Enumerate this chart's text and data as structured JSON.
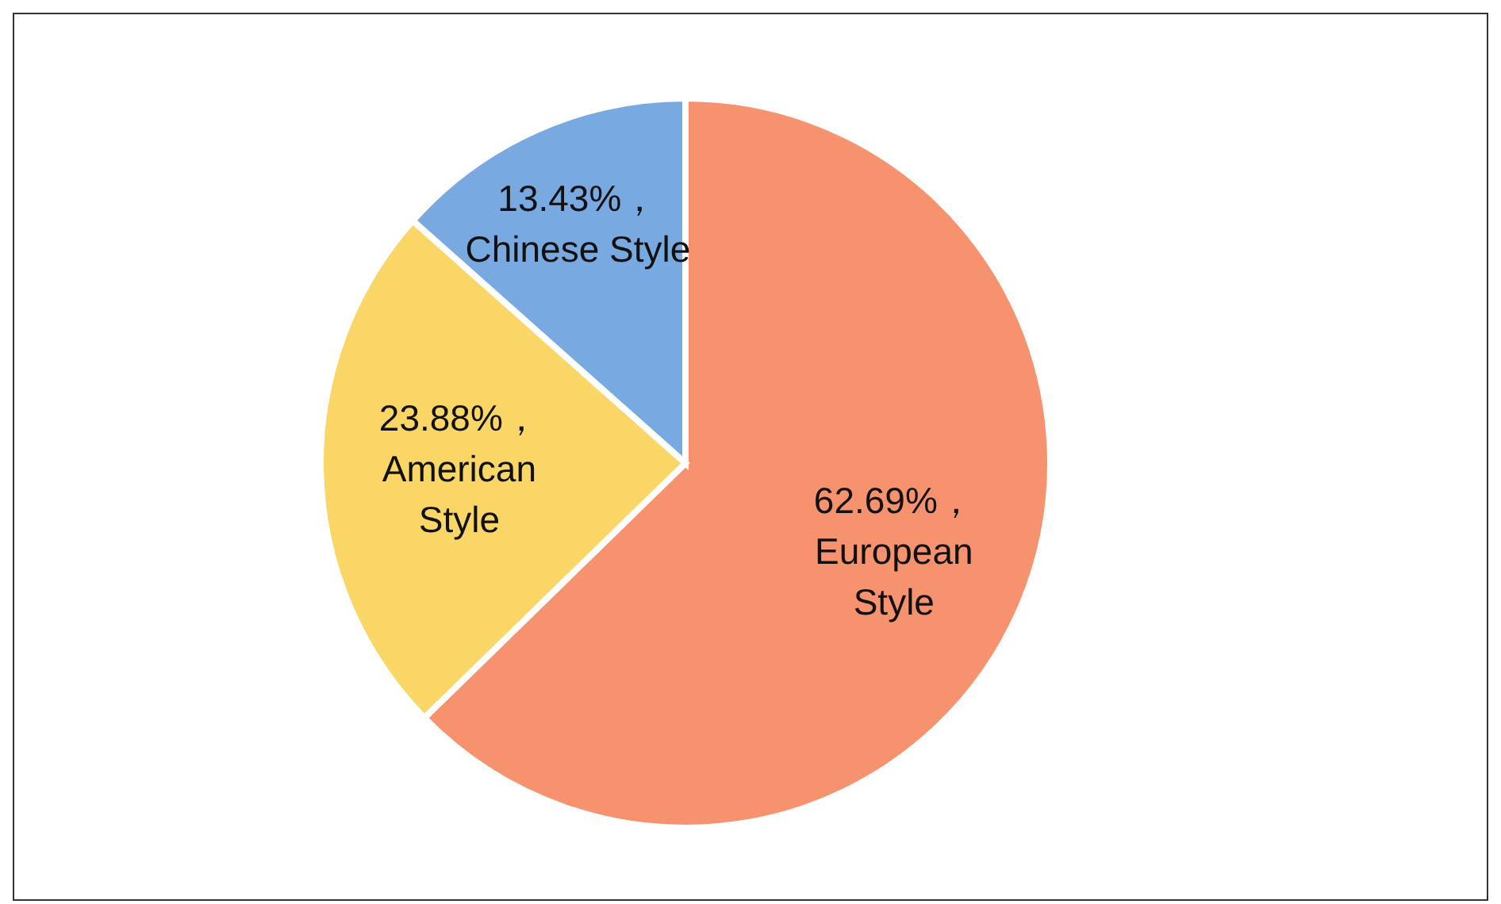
{
  "chart_data": {
    "type": "pie",
    "categories": [
      "European Style",
      "American Style",
      "Chinese Style"
    ],
    "values": [
      62.69,
      23.88,
      13.43
    ],
    "colors": [
      "#f7926e",
      "#fad666",
      "#78a9e0"
    ],
    "value_labels": [
      "62.69%，",
      "23.88%，",
      "13.43%，"
    ],
    "legend": false
  }
}
